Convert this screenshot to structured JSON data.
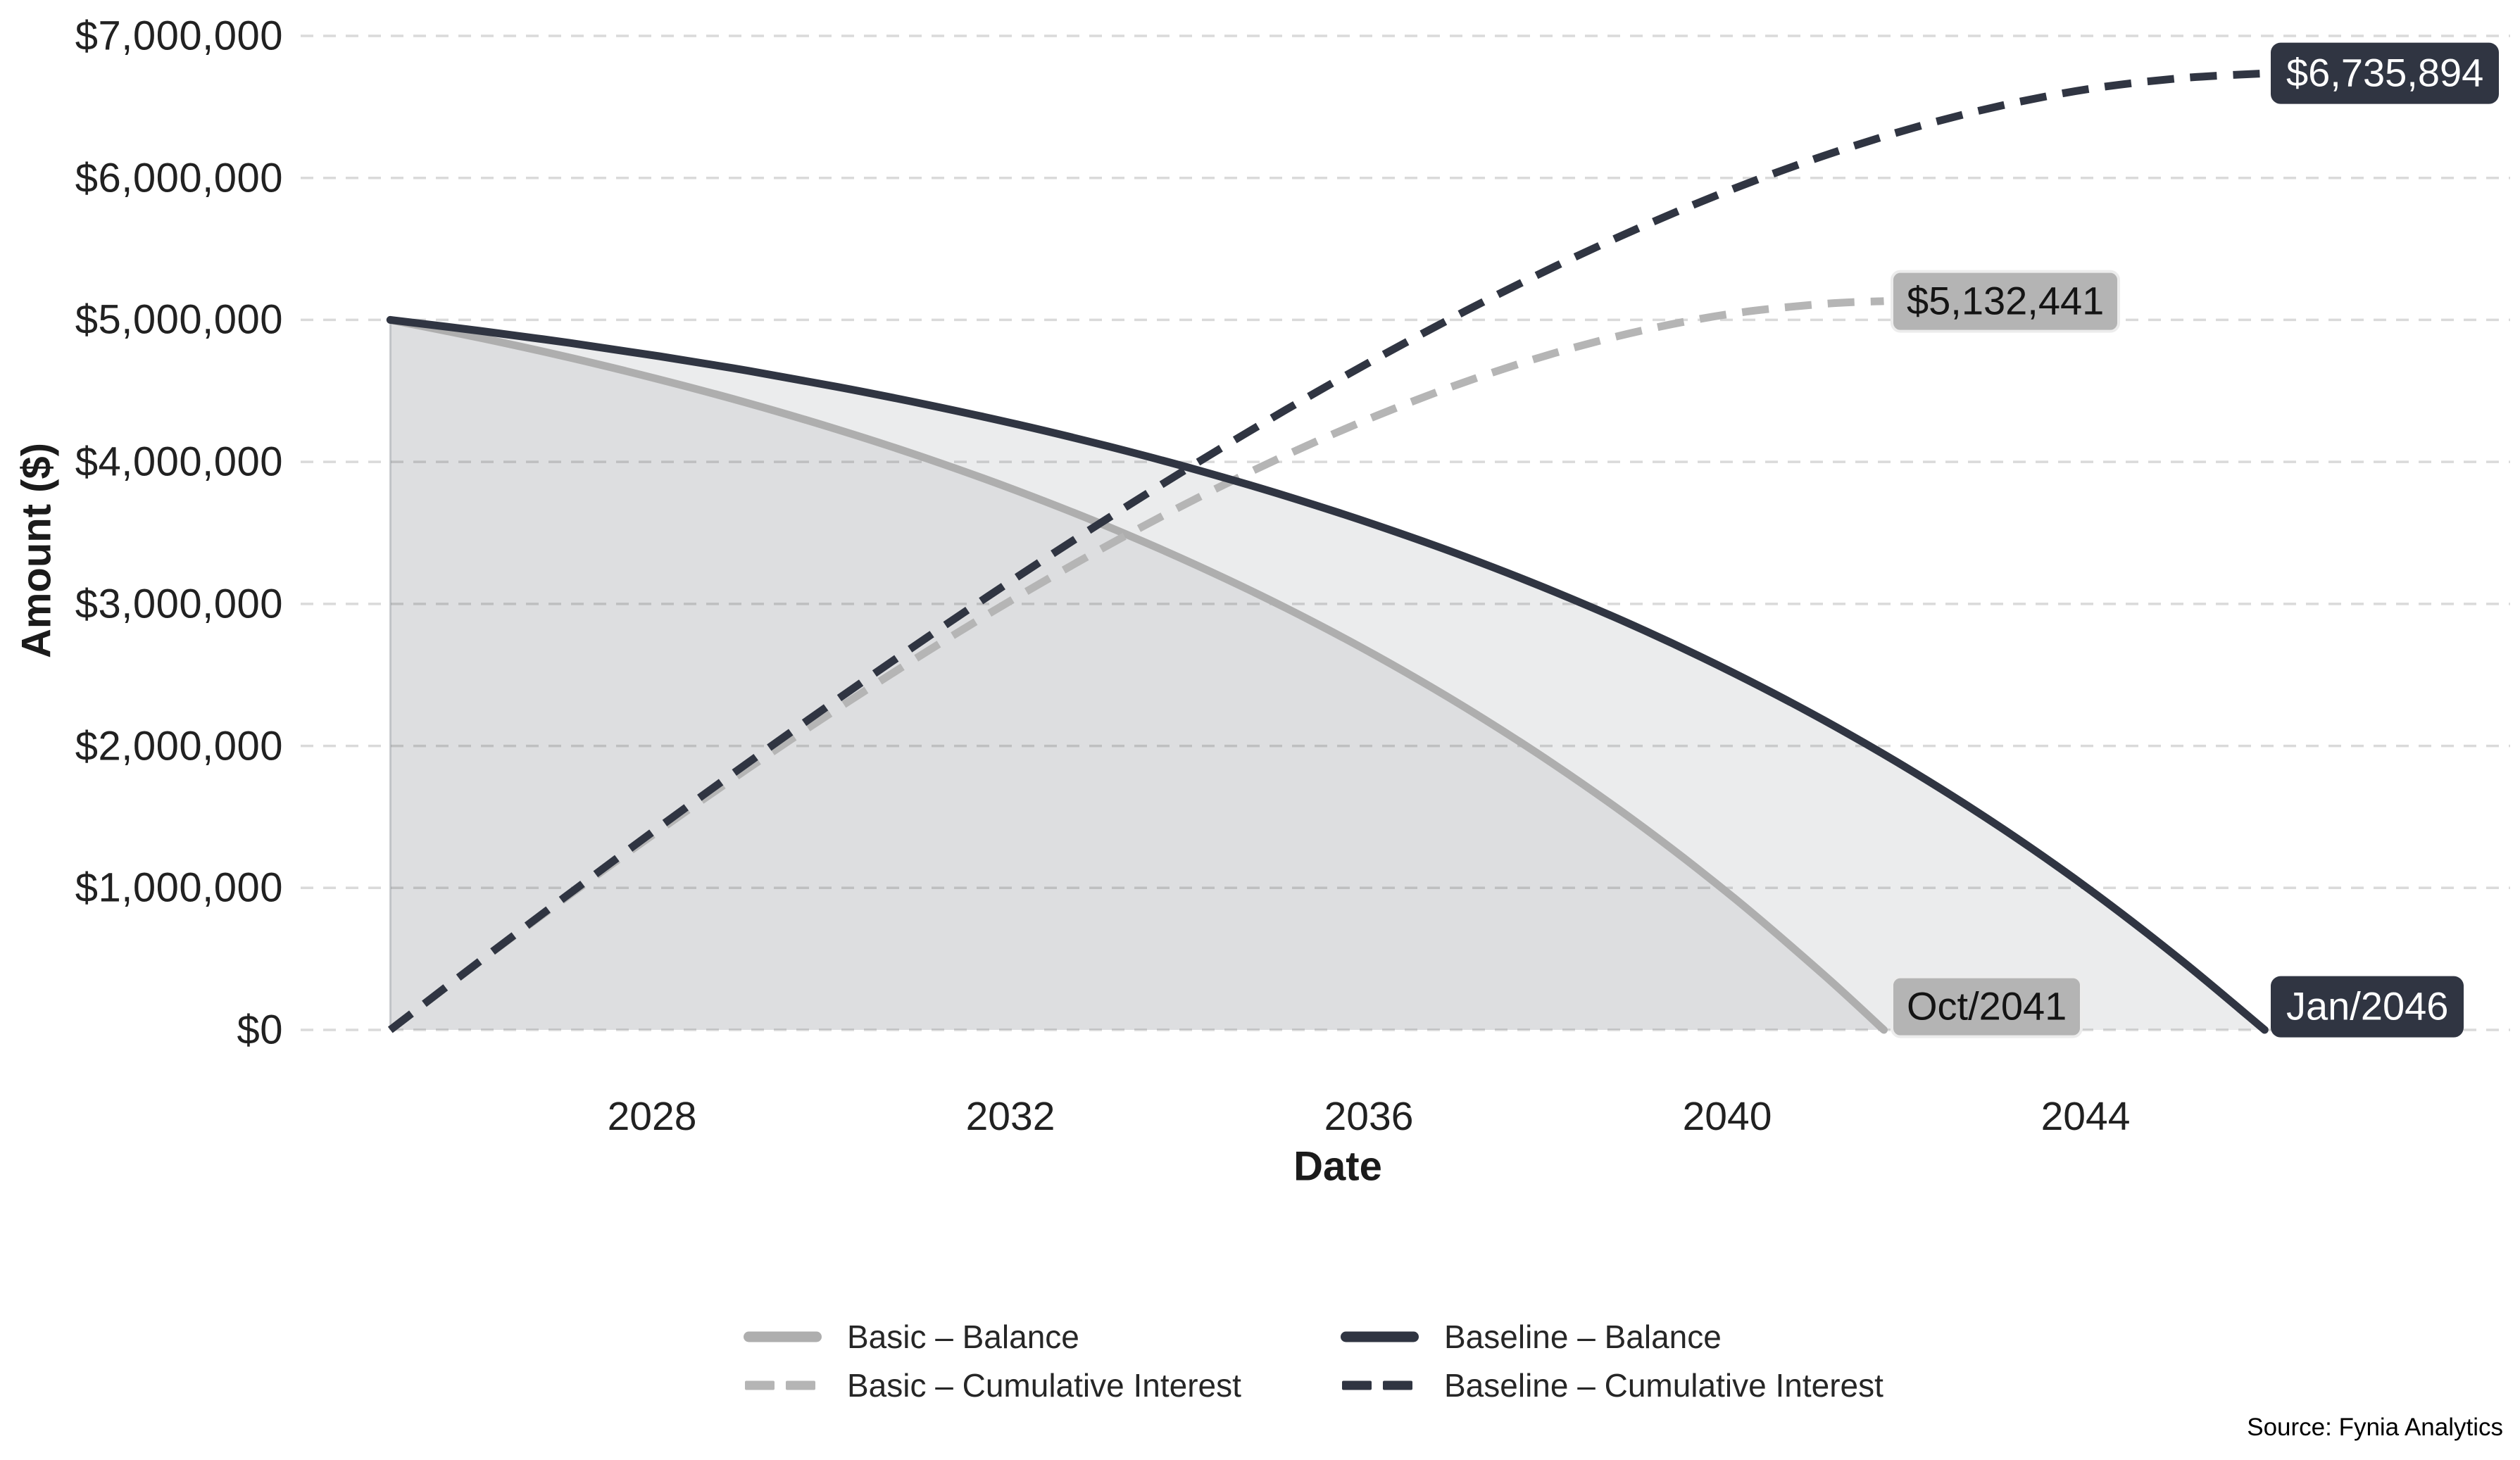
{
  "source_note": "Source: Fynia Analytics",
  "chart_data": {
    "type": "line",
    "xlabel": "Date",
    "ylabel": "Amount ($)",
    "xlim": [
      2024.08,
      2048.74
    ],
    "ylim": [
      0,
      7000000
    ],
    "grid": "horizontal-dashed",
    "legend_position": "bottom-center",
    "x_ticks": [
      {
        "value": 2028,
        "label": "2028"
      },
      {
        "value": 2032,
        "label": "2032"
      },
      {
        "value": 2036,
        "label": "2036"
      },
      {
        "value": 2040,
        "label": "2040"
      },
      {
        "value": 2044,
        "label": "2044"
      }
    ],
    "y_ticks": [
      {
        "value": 0,
        "label": "$0"
      },
      {
        "value": 1000000,
        "label": "$1,000,000"
      },
      {
        "value": 2000000,
        "label": "$2,000,000"
      },
      {
        "value": 3000000,
        "label": "$3,000,000"
      },
      {
        "value": 4000000,
        "label": "$4,000,000"
      },
      {
        "value": 5000000,
        "label": "$5,000,000"
      },
      {
        "value": 6000000,
        "label": "$6,000,000"
      },
      {
        "value": 7000000,
        "label": "$7,000,000"
      }
    ],
    "series": [
      {
        "name": "Basic – Balance",
        "color": "#aeaeae",
        "style": "solid",
        "fill": "rgba(47,53,66,0.075)",
        "points": [
          [
            2025.08,
            5000000
          ],
          [
            2026.08,
            4873792
          ],
          [
            2027.08,
            4734716
          ],
          [
            2028.08,
            4581467
          ],
          [
            2029.08,
            4412605
          ],
          [
            2030.08,
            4226520
          ],
          [
            2031.08,
            4021471
          ],
          [
            2032.08,
            3795517
          ],
          [
            2033.08,
            3546534
          ],
          [
            2034.08,
            3272174
          ],
          [
            2035.08,
            2969857
          ],
          [
            2036.08,
            2636718
          ],
          [
            2037.08,
            2269623
          ],
          [
            2038.08,
            1865107
          ],
          [
            2039.08,
            1419359
          ],
          [
            2040.08,
            928197
          ],
          [
            2041.08,
            386961
          ],
          [
            2041.75,
            0
          ]
        ]
      },
      {
        "name": "Basic – Cumulative Interest",
        "color": "#b5b5b5",
        "style": "dashed",
        "points": [
          [
            2025.08,
            0
          ],
          [
            2026.08,
            481652
          ],
          [
            2027.08,
            950436
          ],
          [
            2028.08,
            1405047
          ],
          [
            2029.08,
            1844045
          ],
          [
            2030.08,
            2265820
          ],
          [
            2031.08,
            2668631
          ],
          [
            2032.08,
            3050537
          ],
          [
            2033.08,
            3409414
          ],
          [
            2034.08,
            3742914
          ],
          [
            2035.08,
            4048457
          ],
          [
            2036.08,
            4323178
          ],
          [
            2037.08,
            4563943
          ],
          [
            2038.08,
            4767287
          ],
          [
            2039.08,
            4929399
          ],
          [
            2040.08,
            5046097
          ],
          [
            2041.08,
            5112721
          ],
          [
            2041.75,
            5132441
          ]
        ]
      },
      {
        "name": "Baseline – Balance",
        "color": "#303542",
        "style": "solid",
        "fill": "rgba(47,53,66,0.095)",
        "points": [
          [
            2025.08,
            5000000
          ],
          [
            2026.08,
            4922868
          ],
          [
            2027.08,
            4837871
          ],
          [
            2028.08,
            4744219
          ],
          [
            2029.08,
            4641018
          ],
          [
            2030.08,
            4527318
          ],
          [
            2031.08,
            4402013
          ],
          [
            2032.08,
            4263907
          ],
          [
            2033.08,
            4111730
          ],
          [
            2034.08,
            3944050
          ],
          [
            2035.08,
            3759299
          ],
          [
            2036.08,
            3555705
          ],
          [
            2037.08,
            3331418
          ],
          [
            2038.08,
            3084220
          ],
          [
            2039.08,
            2811817
          ],
          [
            2040.08,
            2511645
          ],
          [
            2041.08,
            2180845
          ],
          [
            2042.08,
            1816336
          ],
          [
            2043.08,
            1414707
          ],
          [
            2044.08,
            972111
          ],
          [
            2045.08,
            484421
          ],
          [
            2046.0,
            0
          ]
        ]
      },
      {
        "name": "Baseline – Cumulative Interest",
        "color": "#303542",
        "style": "dashed",
        "points": [
          [
            2025.08,
            0
          ],
          [
            2026.08,
            483808
          ],
          [
            2027.08,
            959751
          ],
          [
            2028.08,
            1427039
          ],
          [
            2029.08,
            1884778
          ],
          [
            2030.08,
            2332018
          ],
          [
            2031.08,
            2767653
          ],
          [
            2032.08,
            3190487
          ],
          [
            2033.08,
            3599250
          ],
          [
            2034.08,
            3992510
          ],
          [
            2035.08,
            4368699
          ],
          [
            2036.08,
            4726045
          ],
          [
            2037.08,
            5062698
          ],
          [
            2038.08,
            5376440
          ],
          [
            2039.08,
            5664977
          ],
          [
            2040.08,
            5925745
          ],
          [
            2041.08,
            6155885
          ],
          [
            2042.08,
            6352376
          ],
          [
            2043.08,
            6511627
          ],
          [
            2044.08,
            6629971
          ],
          [
            2045.08,
            6703221
          ],
          [
            2046.0,
            6735894
          ]
        ]
      }
    ],
    "annotations": [
      {
        "label": "$6,735,894",
        "x": 2046.0,
        "y": 6735894,
        "theme": "dark"
      },
      {
        "label": "$5,132,441",
        "x": 2041.75,
        "y": 5132441,
        "theme": "gray"
      },
      {
        "label": "Oct/2041",
        "x": 2041.75,
        "y": 0,
        "theme": "gray"
      },
      {
        "label": "Jan/2046",
        "x": 2046.0,
        "y": 0,
        "theme": "dark"
      }
    ],
    "grid_color": "#dadada",
    "start_edge_color": "rgba(100,105,115,0.30)"
  }
}
